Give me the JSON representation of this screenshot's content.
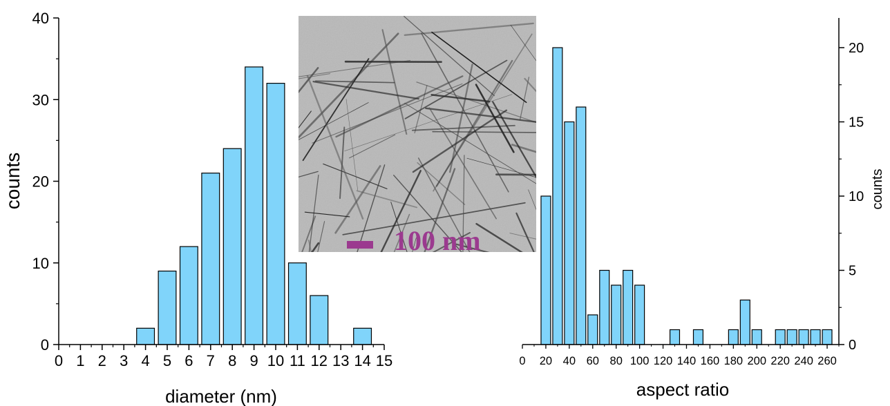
{
  "chart_data": [
    {
      "type": "bar",
      "xlabel": "diameter (nm)",
      "ylabel": "counts",
      "xlim": [
        0,
        15
      ],
      "ylim": [
        0,
        40
      ],
      "x_ticks": [
        "0",
        "1",
        "2",
        "3",
        "4",
        "5",
        "6",
        "7",
        "8",
        "9",
        "10",
        "11",
        "12",
        "13",
        "14",
        "15"
      ],
      "y_ticks": [
        "0",
        "10",
        "20",
        "30",
        "40"
      ],
      "x": [
        4,
        5,
        6,
        7,
        8,
        9,
        10,
        11,
        12,
        14
      ],
      "values": [
        2,
        9,
        12,
        21,
        24,
        34,
        32,
        10,
        6,
        2
      ],
      "bar_color": "#80d4fa",
      "grid": false
    },
    {
      "type": "bar",
      "xlabel": "aspect ratio",
      "ylabel": "counts",
      "xlim": [
        0,
        270
      ],
      "ylim": [
        0,
        22
      ],
      "x_ticks": [
        "0",
        "20",
        "40",
        "60",
        "80",
        "100",
        "120",
        "140",
        "160",
        "180",
        "200",
        "220",
        "240",
        "260"
      ],
      "y_ticks": [
        "0",
        "5",
        "10",
        "15",
        "20"
      ],
      "x": [
        20,
        30,
        40,
        50,
        60,
        70,
        80,
        90,
        100,
        130,
        150,
        180,
        190,
        200,
        220,
        230,
        240,
        250,
        260
      ],
      "values": [
        10,
        20,
        15,
        16,
        2,
        5,
        4,
        5,
        4,
        1,
        1,
        1,
        3,
        1,
        1,
        1,
        1,
        1,
        1
      ],
      "bar_color": "#80d4fa",
      "grid": false
    }
  ],
  "inset": {
    "scale_bar_label": "100 nm",
    "scale_bar_color": "#9b3a8f"
  }
}
